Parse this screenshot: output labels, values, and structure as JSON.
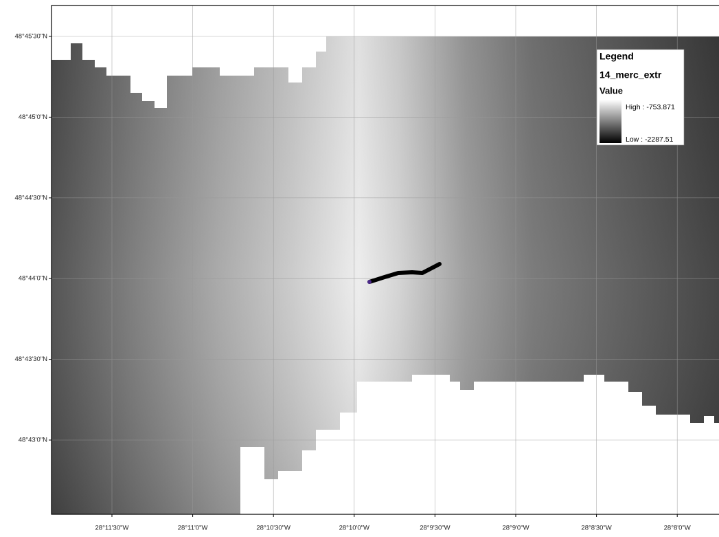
{
  "map": {
    "lat_labels": [
      "48°45'30\"N",
      "48°45'0\"N",
      "48°44'30\"N",
      "48°44'0\"N",
      "48°43'30\"N",
      "48°43'0\"N"
    ],
    "lon_labels": [
      "28°11'30\"W",
      "28°11'0\"W",
      "28°10'30\"W",
      "28°10'0\"W",
      "28°9'30\"W",
      "28°9'0\"W",
      "28°8'30\"W",
      "28°8'0\"W"
    ],
    "legend": {
      "title": "Legend",
      "layer": "14_merc_extr",
      "field": "Value",
      "high": "High : -753.871",
      "low": "Low : -2287.51"
    }
  }
}
